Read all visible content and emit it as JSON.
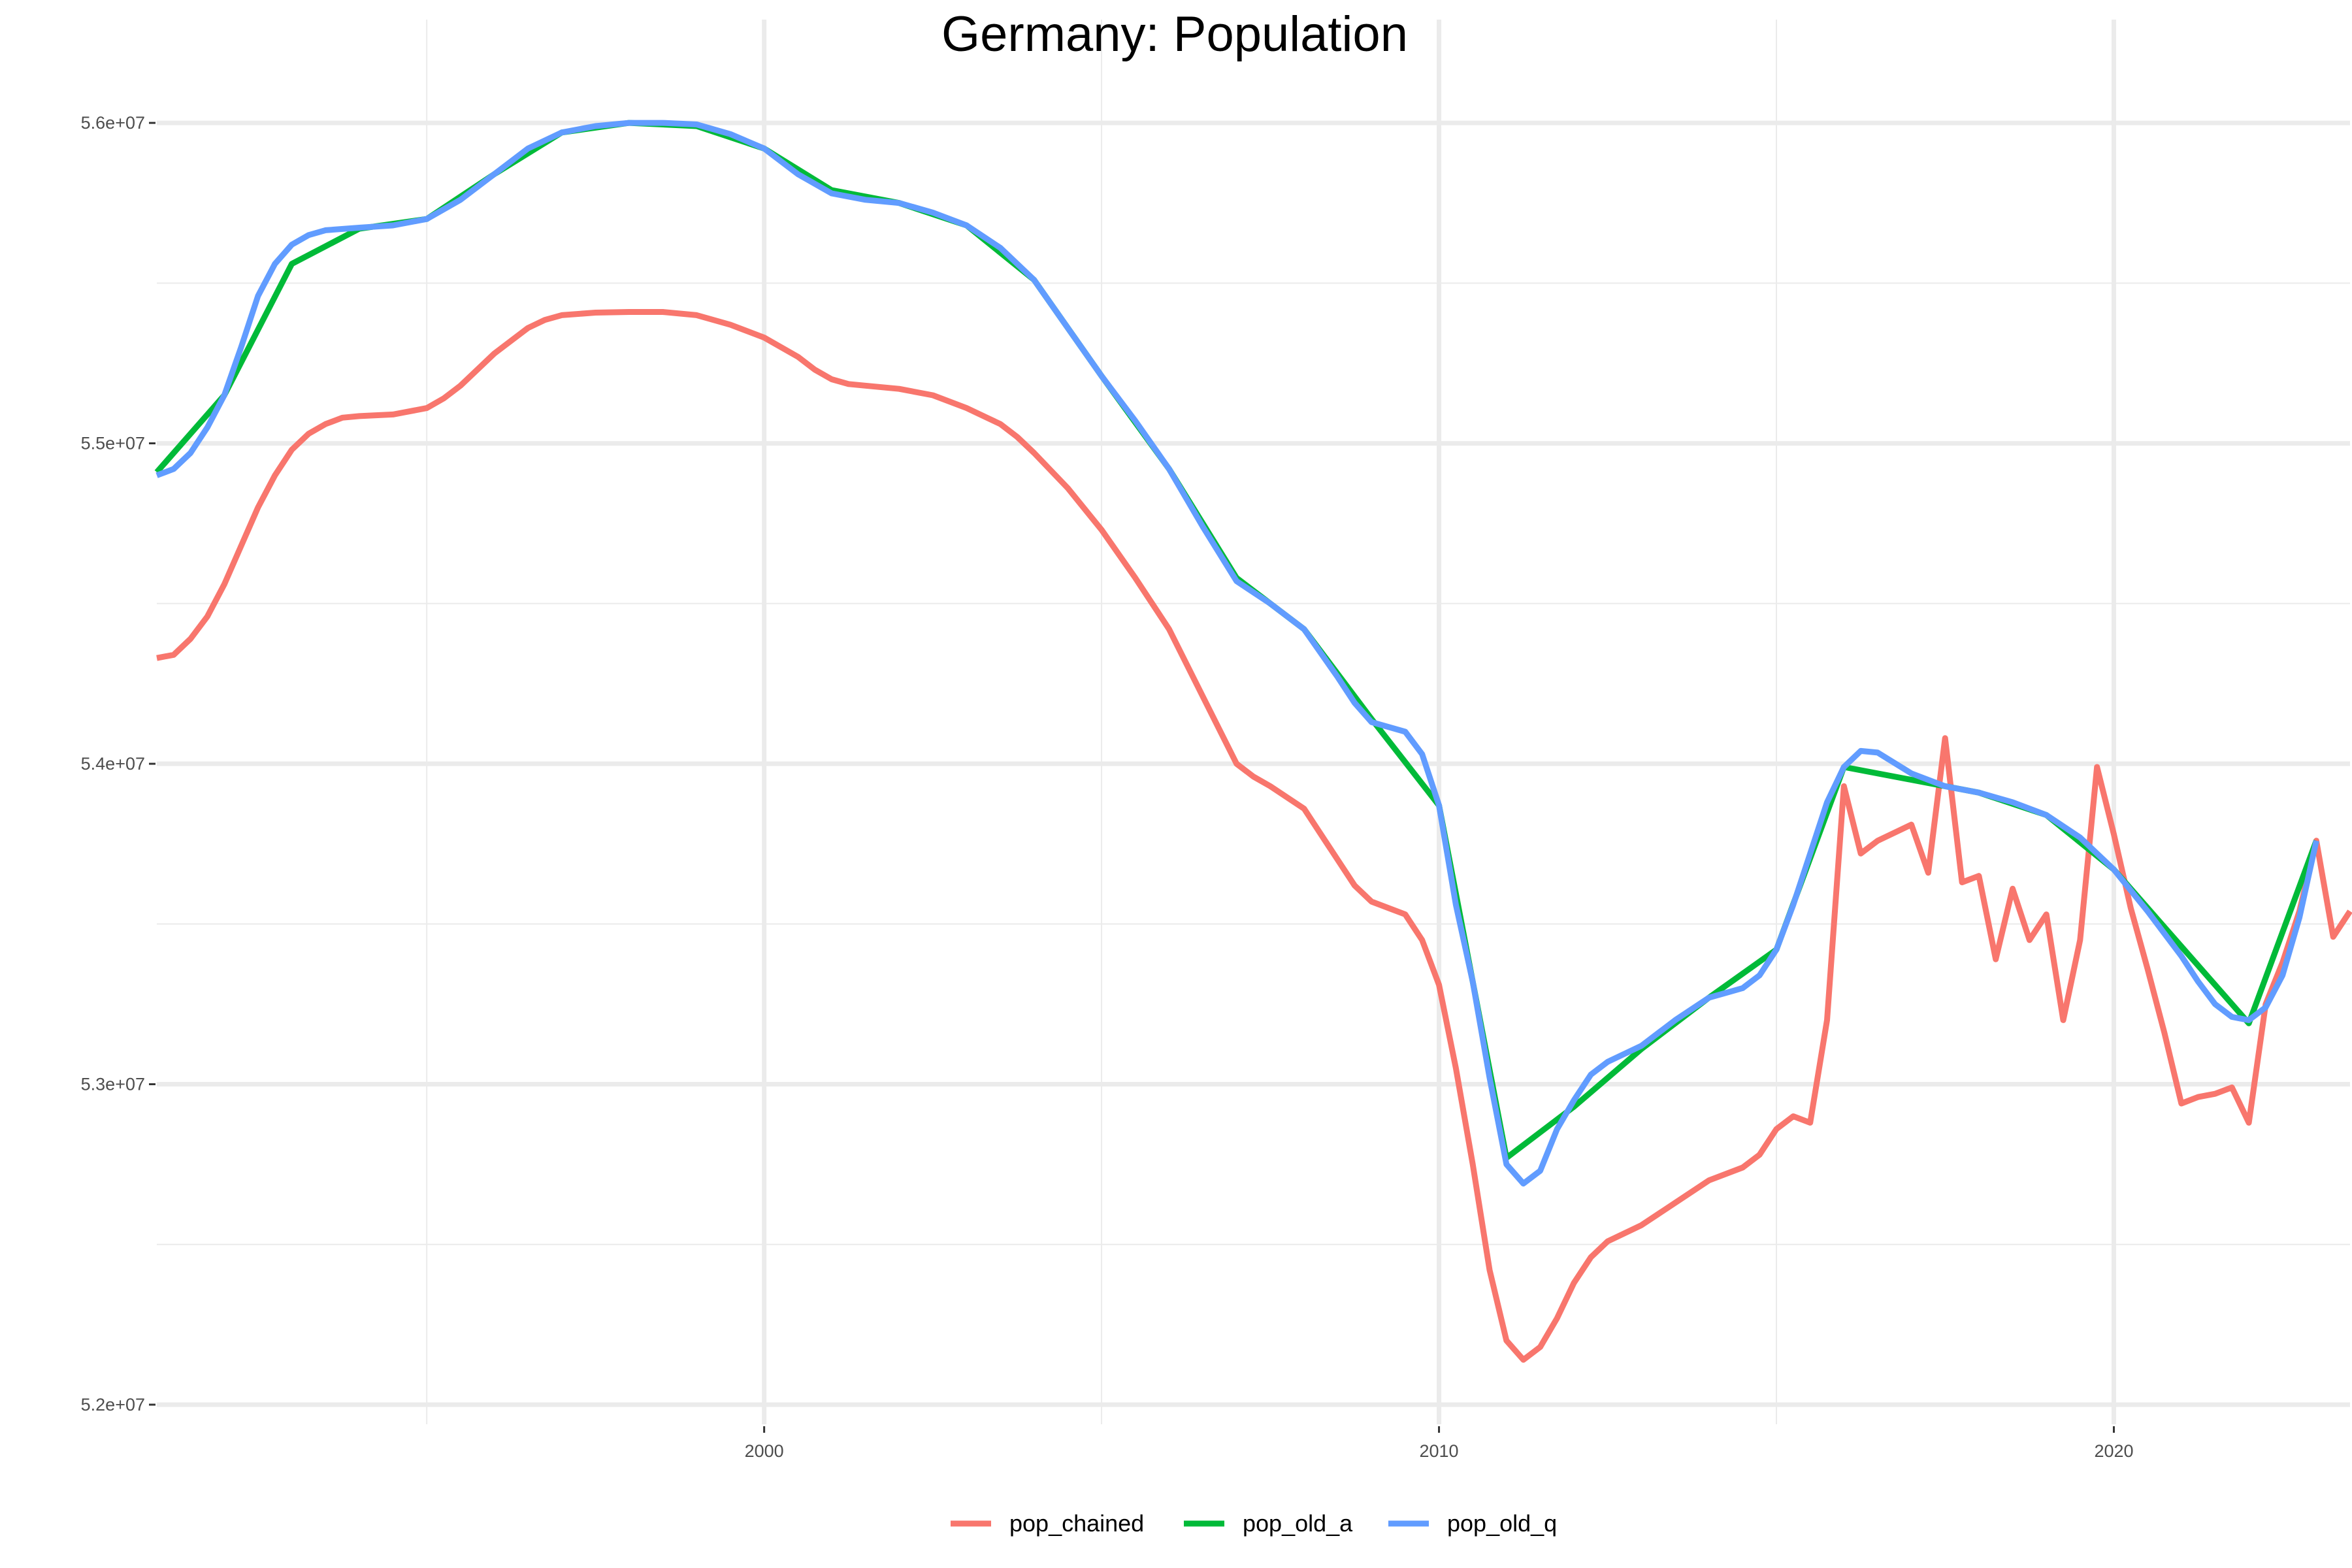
{
  "chart_data": {
    "type": "line",
    "title": "Germany: Population",
    "xlabel": "",
    "ylabel": "",
    "xlim": [
      1991.0,
      2023.5
    ],
    "ylim": [
      52000000,
      56200000
    ],
    "x_ticks": [
      2000,
      2010,
      2020
    ],
    "x_tick_labels": [
      "2000",
      "2010",
      "2020"
    ],
    "y_ticks": [
      52000000,
      53000000,
      54000000,
      55000000,
      56000000
    ],
    "y_tick_labels": [
      "5.2e+07",
      "5.3e+07",
      "5.4e+07",
      "5.5e+07",
      "5.6e+07"
    ],
    "grid": true,
    "legend_position": "bottom",
    "series": [
      {
        "name": "pop_chained",
        "color": "#F8766D",
        "points": [
          [
            1991.0,
            54330000
          ],
          [
            1991.25,
            54340000
          ],
          [
            1991.5,
            54390000
          ],
          [
            1991.75,
            54460000
          ],
          [
            1992.0,
            54560000
          ],
          [
            1992.25,
            54680000
          ],
          [
            1992.5,
            54800000
          ],
          [
            1992.75,
            54900000
          ],
          [
            1993.0,
            54980000
          ],
          [
            1993.25,
            55030000
          ],
          [
            1993.5,
            55060000
          ],
          [
            1993.75,
            55080000
          ],
          [
            1994.0,
            55085000
          ],
          [
            1994.5,
            55090000
          ],
          [
            1995.0,
            55110000
          ],
          [
            1995.25,
            55140000
          ],
          [
            1995.5,
            55180000
          ],
          [
            1995.75,
            55230000
          ],
          [
            1996.0,
            55280000
          ],
          [
            1996.25,
            55320000
          ],
          [
            1996.5,
            55360000
          ],
          [
            1996.75,
            55385000
          ],
          [
            1997.0,
            55400000
          ],
          [
            1997.5,
            55408000
          ],
          [
            1998.0,
            55410000
          ],
          [
            1998.5,
            55410000
          ],
          [
            1999.0,
            55400000
          ],
          [
            1999.5,
            55370000
          ],
          [
            2000.0,
            55330000
          ],
          [
            2000.5,
            55270000
          ],
          [
            2000.75,
            55230000
          ],
          [
            2001.0,
            55200000
          ],
          [
            2001.25,
            55185000
          ],
          [
            2001.5,
            55180000
          ],
          [
            2002.0,
            55170000
          ],
          [
            2002.5,
            55150000
          ],
          [
            2003.0,
            55110000
          ],
          [
            2003.5,
            55060000
          ],
          [
            2003.75,
            55020000
          ],
          [
            2004.0,
            54970000
          ],
          [
            2004.5,
            54860000
          ],
          [
            2005.0,
            54730000
          ],
          [
            2005.5,
            54580000
          ],
          [
            2006.0,
            54420000
          ],
          [
            2006.5,
            54210000
          ],
          [
            2007.0,
            54000000
          ],
          [
            2007.25,
            53960000
          ],
          [
            2007.5,
            53930000
          ],
          [
            2008.0,
            53860000
          ],
          [
            2008.25,
            53780000
          ],
          [
            2008.5,
            53700000
          ],
          [
            2008.75,
            53620000
          ],
          [
            2009.0,
            53570000
          ],
          [
            2009.5,
            53530000
          ],
          [
            2009.75,
            53450000
          ],
          [
            2010.0,
            53310000
          ],
          [
            2010.25,
            53050000
          ],
          [
            2010.5,
            52750000
          ],
          [
            2010.75,
            52420000
          ],
          [
            2011.0,
            52200000
          ],
          [
            2011.25,
            52140000
          ],
          [
            2011.5,
            52180000
          ],
          [
            2011.75,
            52270000
          ],
          [
            2012.0,
            52380000
          ],
          [
            2012.25,
            52460000
          ],
          [
            2012.5,
            52510000
          ],
          [
            2013.0,
            52560000
          ],
          [
            2013.5,
            52630000
          ],
          [
            2014.0,
            52700000
          ],
          [
            2014.5,
            52740000
          ],
          [
            2014.75,
            52780000
          ],
          [
            2015.0,
            52860000
          ],
          [
            2015.25,
            52900000
          ],
          [
            2015.5,
            52880000
          ],
          [
            2015.75,
            53200000
          ],
          [
            2016.0,
            53930000
          ],
          [
            2016.25,
            53720000
          ],
          [
            2016.5,
            53760000
          ],
          [
            2017.0,
            53810000
          ],
          [
            2017.25,
            53660000
          ],
          [
            2017.5,
            54080000
          ],
          [
            2017.75,
            53630000
          ],
          [
            2018.0,
            53650000
          ],
          [
            2018.25,
            53390000
          ],
          [
            2018.5,
            53610000
          ],
          [
            2018.75,
            53450000
          ],
          [
            2019.0,
            53530000
          ],
          [
            2019.25,
            53200000
          ],
          [
            2019.5,
            53450000
          ],
          [
            2019.75,
            53990000
          ],
          [
            2020.0,
            53780000
          ],
          [
            2020.25,
            53550000
          ],
          [
            2020.5,
            53360000
          ],
          [
            2020.75,
            53160000
          ],
          [
            2021.0,
            52940000
          ],
          [
            2021.25,
            52960000
          ],
          [
            2021.5,
            52970000
          ],
          [
            2021.75,
            52990000
          ],
          [
            2022.0,
            52880000
          ],
          [
            2022.25,
            53250000
          ],
          [
            2022.5,
            53380000
          ],
          [
            2022.75,
            53540000
          ],
          [
            2023.0,
            53760000
          ],
          [
            2023.25,
            53460000
          ],
          [
            2023.5,
            53540000
          ]
        ]
      },
      {
        "name": "pop_old_a",
        "color": "#00BA38",
        "points": [
          [
            1991.0,
            54910000
          ],
          [
            1992.0,
            55150000
          ],
          [
            1993.0,
            55560000
          ],
          [
            1994.0,
            55670000
          ],
          [
            1995.0,
            55700000
          ],
          [
            1996.0,
            55840000
          ],
          [
            1997.0,
            55970000
          ],
          [
            1998.0,
            56000000
          ],
          [
            1999.0,
            55990000
          ],
          [
            2000.0,
            55920000
          ],
          [
            2001.0,
            55790000
          ],
          [
            2002.0,
            55750000
          ],
          [
            2003.0,
            55680000
          ],
          [
            2004.0,
            55510000
          ],
          [
            2005.0,
            55210000
          ],
          [
            2006.0,
            54920000
          ],
          [
            2007.0,
            54580000
          ],
          [
            2008.0,
            54420000
          ],
          [
            2009.0,
            54140000
          ],
          [
            2010.0,
            53870000
          ],
          [
            2011.0,
            52770000
          ],
          [
            2012.0,
            52930000
          ],
          [
            2013.0,
            53110000
          ],
          [
            2014.0,
            53270000
          ],
          [
            2015.0,
            53420000
          ],
          [
            2016.0,
            53990000
          ],
          [
            2017.0,
            53950000
          ],
          [
            2018.0,
            53910000
          ],
          [
            2019.0,
            53840000
          ],
          [
            2020.0,
            53670000
          ],
          [
            2021.0,
            53430000
          ],
          [
            2022.0,
            53190000
          ],
          [
            2023.0,
            53760000
          ]
        ]
      },
      {
        "name": "pop_old_q",
        "color": "#619CFF",
        "points": [
          [
            1991.0,
            54900000
          ],
          [
            1991.25,
            54920000
          ],
          [
            1991.5,
            54970000
          ],
          [
            1991.75,
            55050000
          ],
          [
            1992.0,
            55150000
          ],
          [
            1992.25,
            55300000
          ],
          [
            1992.5,
            55460000
          ],
          [
            1992.75,
            55560000
          ],
          [
            1993.0,
            55620000
          ],
          [
            1993.25,
            55650000
          ],
          [
            1993.5,
            55665000
          ],
          [
            1994.0,
            55673000
          ],
          [
            1994.5,
            55680000
          ],
          [
            1995.0,
            55700000
          ],
          [
            1995.5,
            55760000
          ],
          [
            1996.0,
            55840000
          ],
          [
            1996.5,
            55920000
          ],
          [
            1997.0,
            55970000
          ],
          [
            1997.5,
            55990000
          ],
          [
            1998.0,
            56000000
          ],
          [
            1998.5,
            56000000
          ],
          [
            1999.0,
            55995000
          ],
          [
            1999.5,
            55965000
          ],
          [
            2000.0,
            55920000
          ],
          [
            2000.5,
            55840000
          ],
          [
            2001.0,
            55780000
          ],
          [
            2001.5,
            55760000
          ],
          [
            2002.0,
            55750000
          ],
          [
            2002.5,
            55720000
          ],
          [
            2003.0,
            55680000
          ],
          [
            2003.5,
            55610000
          ],
          [
            2004.0,
            55510000
          ],
          [
            2004.5,
            55360000
          ],
          [
            2005.0,
            55210000
          ],
          [
            2005.5,
            55070000
          ],
          [
            2006.0,
            54920000
          ],
          [
            2006.5,
            54740000
          ],
          [
            2007.0,
            54570000
          ],
          [
            2007.5,
            54500000
          ],
          [
            2008.0,
            54420000
          ],
          [
            2008.5,
            54270000
          ],
          [
            2008.75,
            54190000
          ],
          [
            2009.0,
            54130000
          ],
          [
            2009.5,
            54100000
          ],
          [
            2009.75,
            54030000
          ],
          [
            2010.0,
            53870000
          ],
          [
            2010.25,
            53560000
          ],
          [
            2010.5,
            53320000
          ],
          [
            2010.75,
            53020000
          ],
          [
            2011.0,
            52750000
          ],
          [
            2011.25,
            52690000
          ],
          [
            2011.5,
            52730000
          ],
          [
            2011.75,
            52860000
          ],
          [
            2012.0,
            52950000
          ],
          [
            2012.25,
            53030000
          ],
          [
            2012.5,
            53070000
          ],
          [
            2013.0,
            53120000
          ],
          [
            2013.5,
            53200000
          ],
          [
            2014.0,
            53270000
          ],
          [
            2014.5,
            53300000
          ],
          [
            2014.75,
            53340000
          ],
          [
            2015.0,
            53420000
          ],
          [
            2015.25,
            53560000
          ],
          [
            2015.5,
            53720000
          ],
          [
            2015.75,
            53880000
          ],
          [
            2016.0,
            53990000
          ],
          [
            2016.25,
            54040000
          ],
          [
            2016.5,
            54035000
          ],
          [
            2017.0,
            53970000
          ],
          [
            2017.5,
            53930000
          ],
          [
            2018.0,
            53910000
          ],
          [
            2018.5,
            53880000
          ],
          [
            2019.0,
            53840000
          ],
          [
            2019.5,
            53770000
          ],
          [
            2020.0,
            53670000
          ],
          [
            2020.5,
            53540000
          ],
          [
            2021.0,
            53400000
          ],
          [
            2021.25,
            53320000
          ],
          [
            2021.5,
            53250000
          ],
          [
            2021.75,
            53210000
          ],
          [
            2022.0,
            53200000
          ],
          [
            2022.25,
            53240000
          ],
          [
            2022.5,
            53340000
          ],
          [
            2022.75,
            53520000
          ],
          [
            2023.0,
            53760000
          ]
        ]
      }
    ]
  }
}
